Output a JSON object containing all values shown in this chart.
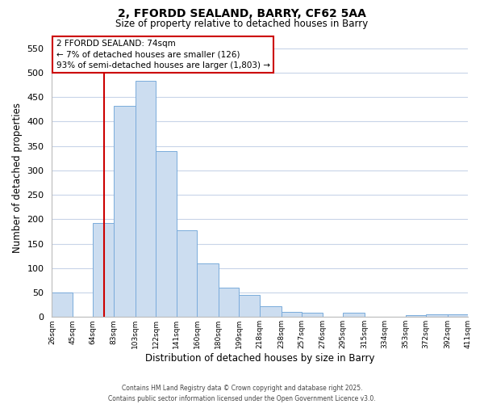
{
  "title_line1": "2, FFORDD SEALAND, BARRY, CF62 5AA",
  "title_line2": "Size of property relative to detached houses in Barry",
  "xlabel": "Distribution of detached houses by size in Barry",
  "ylabel": "Number of detached properties",
  "bar_color": "#ccddf0",
  "bar_edge_color": "#7aabdb",
  "bin_edges": [
    26,
    45,
    64,
    83,
    103,
    122,
    141,
    160,
    180,
    199,
    218,
    238,
    257,
    276,
    295,
    315,
    334,
    353,
    372,
    392,
    411
  ],
  "counts": [
    50,
    0,
    193,
    432,
    484,
    340,
    178,
    110,
    60,
    45,
    22,
    10,
    8,
    0,
    8,
    0,
    0,
    3,
    5,
    5
  ],
  "tick_labels": [
    "26sqm",
    "45sqm",
    "64sqm",
    "83sqm",
    "103sqm",
    "122sqm",
    "141sqm",
    "160sqm",
    "180sqm",
    "199sqm",
    "218sqm",
    "238sqm",
    "257sqm",
    "276sqm",
    "295sqm",
    "315sqm",
    "334sqm",
    "353sqm",
    "372sqm",
    "392sqm",
    "411sqm"
  ],
  "vline_x": 74,
  "vline_color": "#cc0000",
  "ylim": [
    0,
    570
  ],
  "yticks": [
    0,
    50,
    100,
    150,
    200,
    250,
    300,
    350,
    400,
    450,
    500,
    550
  ],
  "annotation_title": "2 FFORDD SEALAND: 74sqm",
  "annotation_line1": "← 7% of detached houses are smaller (126)",
  "annotation_line2": "93% of semi-detached houses are larger (1,803) →",
  "annotation_box_color": "#ffffff",
  "annotation_box_edge": "#cc0000",
  "footer_line1": "Contains HM Land Registry data © Crown copyright and database right 2025.",
  "footer_line2": "Contains public sector information licensed under the Open Government Licence v3.0.",
  "bg_color": "#ffffff",
  "grid_color": "#c8d4e8",
  "fig_width": 6.0,
  "fig_height": 5.0,
  "fig_dpi": 100
}
